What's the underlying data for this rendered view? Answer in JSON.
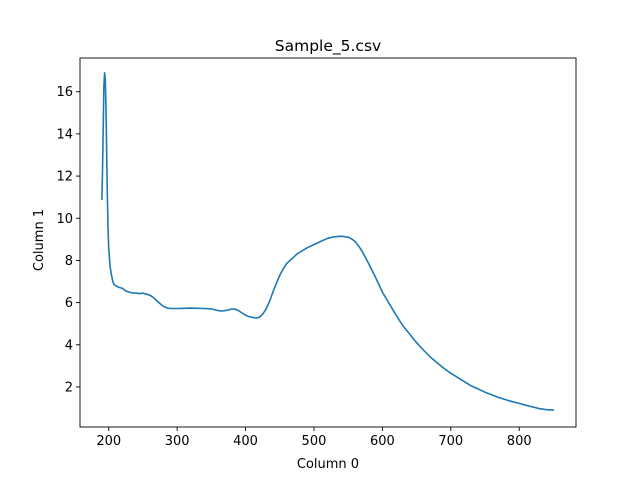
{
  "chart_data": {
    "type": "line",
    "title": "Sample_5.csv",
    "xlabel": "Column 0",
    "ylabel": "Column 1",
    "xlim": [
      158,
      883
    ],
    "ylim": [
      0.1,
      17.6
    ],
    "xticks": [
      200,
      300,
      400,
      500,
      600,
      700,
      800
    ],
    "yticks": [
      2,
      4,
      6,
      8,
      10,
      12,
      14,
      16
    ],
    "grid": false,
    "legend": "none",
    "color": "#1f77b4",
    "series": [
      {
        "x": [
          190,
          191,
          192,
          193,
          194,
          195,
          196,
          197,
          198,
          199,
          200,
          202,
          204,
          206,
          208,
          210,
          215,
          220,
          225,
          230,
          235,
          240,
          245,
          250,
          255,
          260,
          265,
          270,
          275,
          280,
          285,
          290,
          295,
          300,
          310,
          320,
          330,
          340,
          350,
          360,
          365,
          370,
          375,
          380,
          385,
          390,
          395,
          400,
          405,
          410,
          415,
          420,
          425,
          430,
          435,
          440,
          445,
          450,
          455,
          460,
          465,
          470,
          475,
          480,
          490,
          500,
          510,
          520,
          530,
          540,
          550,
          555,
          560,
          565,
          570,
          575,
          580,
          590,
          600,
          610,
          620,
          630,
          640,
          650,
          660,
          670,
          680,
          690,
          700,
          710,
          720,
          730,
          740,
          750,
          760,
          770,
          780,
          790,
          800,
          810,
          820,
          830,
          840,
          850
        ],
        "y": [
          10.9,
          12.5,
          14.5,
          16.3,
          16.9,
          16.6,
          15.2,
          13.0,
          11.0,
          9.6,
          8.6,
          7.7,
          7.3,
          7.0,
          6.85,
          6.8,
          6.72,
          6.68,
          6.55,
          6.5,
          6.45,
          6.45,
          6.42,
          6.45,
          6.4,
          6.35,
          6.25,
          6.1,
          5.95,
          5.82,
          5.75,
          5.72,
          5.72,
          5.72,
          5.73,
          5.74,
          5.73,
          5.72,
          5.7,
          5.62,
          5.6,
          5.62,
          5.65,
          5.7,
          5.68,
          5.62,
          5.5,
          5.4,
          5.33,
          5.3,
          5.27,
          5.3,
          5.45,
          5.7,
          6.05,
          6.5,
          6.9,
          7.3,
          7.6,
          7.85,
          8.0,
          8.15,
          8.3,
          8.4,
          8.6,
          8.75,
          8.9,
          9.05,
          9.12,
          9.15,
          9.1,
          9.02,
          8.9,
          8.7,
          8.45,
          8.15,
          7.85,
          7.2,
          6.5,
          5.95,
          5.4,
          4.9,
          4.5,
          4.1,
          3.75,
          3.42,
          3.15,
          2.88,
          2.65,
          2.45,
          2.25,
          2.05,
          1.9,
          1.75,
          1.62,
          1.5,
          1.4,
          1.3,
          1.22,
          1.13,
          1.05,
          0.97,
          0.92,
          0.9
        ]
      }
    ]
  }
}
